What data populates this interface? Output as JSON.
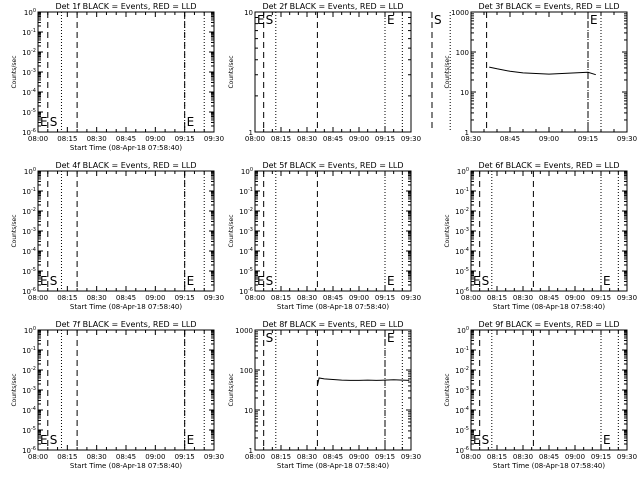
{
  "colors": {
    "events": "#000000",
    "lld": "#ff0000",
    "background": "#ffffff"
  },
  "chart_data": [
    {
      "type": "line",
      "title": "Det 1f BLACK = Events, RED = LLD",
      "xlabel": "Start Time (08-Apr-18 07:58:40)",
      "ylabel": "Counts/sec",
      "x_ticks": [
        "08:00",
        "08:15",
        "08:30",
        "08:45",
        "09:00",
        "09:15",
        "09:30"
      ],
      "y_ticks": [
        "10^0",
        "10^-1",
        "10^-2",
        "10^-3",
        "10^-4",
        "10^-5",
        "10^-6"
      ],
      "ylim": [
        1e-06,
        1
      ],
      "y_scale": "log",
      "markers": [
        {
          "text": "E",
          "at": "08:00"
        },
        {
          "text": "S",
          "at": "08:05"
        },
        {
          "text": "E",
          "at": "09:15"
        }
      ],
      "vlines_dashed": [
        "08:05",
        "08:20",
        "09:15"
      ],
      "vlines_dotted": [
        "08:12",
        "09:15",
        "09:25"
      ],
      "series": []
    },
    {
      "type": "line",
      "title": "Det 2f BLACK = Events, RED = LLD",
      "xlabel": "",
      "ylabel": "Counts/sec",
      "x_ticks": [
        "08:00",
        "08:15",
        "08:30",
        "08:45",
        "09:00",
        "09:15",
        "09:30"
      ],
      "y_ticks": [
        "1",
        "10"
      ],
      "ylim": [
        1,
        10
      ],
      "y_scale": "log",
      "markers": [
        {
          "text": "E",
          "at": "08:00"
        },
        {
          "text": "S",
          "at": "08:05"
        },
        {
          "text": "E",
          "at": "09:15"
        }
      ],
      "vlines_dashed": [
        "08:05",
        "08:36"
      ],
      "vlines_dotted": [
        "08:12",
        "09:15",
        "09:25"
      ],
      "series": []
    },
    {
      "type": "line",
      "title": "Det 3f BLACK = Events, RED = LLD",
      "xlabel": "",
      "ylabel": "Counts/sec",
      "x_ticks": [
        "08:30",
        "08:45",
        "09:00",
        "09:15",
        "09:30"
      ],
      "y_ticks": [
        "1",
        "10",
        "100",
        "1000"
      ],
      "ylim": [
        1,
        1000
      ],
      "y_scale": "log",
      "markers": [
        {
          "text": "S",
          "at": "08:15"
        },
        {
          "text": "E",
          "at": "09:15"
        }
      ],
      "vlines_dashed": [
        "08:15",
        "08:36",
        "09:15"
      ],
      "vlines_dotted": [
        "08:22",
        "09:15",
        "09:20"
      ],
      "series": [
        {
          "x": [
            "08:37",
            "08:40",
            "08:45",
            "08:50",
            "08:55",
            "09:00",
            "09:05",
            "09:10",
            "09:15",
            "09:18"
          ],
          "values": [
            42,
            38,
            33,
            30,
            29,
            28,
            29,
            30,
            31,
            27
          ]
        }
      ]
    },
    {
      "type": "line",
      "title": "Det 4f BLACK = Events, RED = LLD",
      "xlabel": "Start Time (08-Apr-18 07:58:40)",
      "ylabel": "Counts/sec",
      "x_ticks": [
        "08:00",
        "08:15",
        "08:30",
        "08:45",
        "09:00",
        "09:15",
        "09:30"
      ],
      "y_ticks": [
        "10^0",
        "10^-1",
        "10^-2",
        "10^-3",
        "10^-4",
        "10^-5",
        "10^-6"
      ],
      "ylim": [
        1e-06,
        1
      ],
      "y_scale": "log",
      "markers": [
        {
          "text": "E",
          "at": "08:00"
        },
        {
          "text": "S",
          "at": "08:05"
        },
        {
          "text": "E",
          "at": "09:15"
        }
      ],
      "vlines_dashed": [
        "08:05",
        "08:20",
        "09:15"
      ],
      "vlines_dotted": [
        "08:12",
        "09:15",
        "09:25"
      ],
      "series": []
    },
    {
      "type": "line",
      "title": "Det 5f BLACK = Events, RED = LLD",
      "xlabel": "Start Time (08-Apr-18 07:58:40)",
      "ylabel": "Counts/sec",
      "x_ticks": [
        "08:00",
        "08:15",
        "08:30",
        "08:45",
        "09:00",
        "09:15",
        "09:30"
      ],
      "y_ticks": [
        "10^0",
        "10^-1",
        "10^-2",
        "10^-3",
        "10^-4",
        "10^-5",
        "10^-6"
      ],
      "ylim": [
        1e-06,
        1
      ],
      "y_scale": "log",
      "markers": [
        {
          "text": "E",
          "at": "08:00"
        },
        {
          "text": "S",
          "at": "08:05"
        },
        {
          "text": "E",
          "at": "09:15"
        }
      ],
      "vlines_dashed": [
        "08:05",
        "08:36"
      ],
      "vlines_dotted": [
        "08:12",
        "09:15",
        "09:25"
      ],
      "series": []
    },
    {
      "type": "line",
      "title": "Det 6f BLACK = Events, RED = LLD",
      "xlabel": "Start Time (08-Apr-18 07:58:40)",
      "ylabel": "Counts/sec",
      "x_ticks": [
        "08:00",
        "08:15",
        "08:30",
        "08:45",
        "09:00",
        "09:15",
        "09:30"
      ],
      "y_ticks": [
        "10^0",
        "10^-1",
        "10^-2",
        "10^-3",
        "10^-4",
        "10^-5",
        "10^-6"
      ],
      "ylim": [
        1e-06,
        1
      ],
      "y_scale": "log",
      "markers": [
        {
          "text": "E",
          "at": "08:00"
        },
        {
          "text": "S",
          "at": "08:05"
        },
        {
          "text": "E",
          "at": "09:15"
        }
      ],
      "vlines_dashed": [
        "08:05",
        "08:36"
      ],
      "vlines_dotted": [
        "08:12",
        "09:15",
        "09:25"
      ],
      "series": []
    },
    {
      "type": "line",
      "title": "Det 7f BLACK = Events, RED = LLD",
      "xlabel": "Start Time (08-Apr-18 07:58:40)",
      "ylabel": "Counts/sec",
      "x_ticks": [
        "08:00",
        "08:15",
        "08:30",
        "08:45",
        "09:00",
        "09:15",
        "09:30"
      ],
      "y_ticks": [
        "10^0",
        "10^-1",
        "10^-2",
        "10^-3",
        "10^-4",
        "10^-5",
        "10^-6"
      ],
      "ylim": [
        1e-06,
        1
      ],
      "y_scale": "log",
      "markers": [
        {
          "text": "E",
          "at": "08:00"
        },
        {
          "text": "S",
          "at": "08:05"
        },
        {
          "text": "E",
          "at": "09:15"
        }
      ],
      "vlines_dashed": [
        "08:05",
        "08:20",
        "09:15"
      ],
      "vlines_dotted": [
        "08:12",
        "09:15",
        "09:25"
      ],
      "series": []
    },
    {
      "type": "line",
      "title": "Det 8f BLACK = Events, RED = LLD",
      "xlabel": "Start Time (08-Apr-18 07:58:40)",
      "ylabel": "Counts/sec",
      "x_ticks": [
        "08:00",
        "08:15",
        "08:30",
        "08:45",
        "09:00",
        "09:15",
        "09:30"
      ],
      "y_ticks": [
        "1",
        "10",
        "100",
        "1000"
      ],
      "ylim": [
        1,
        1000
      ],
      "y_scale": "log",
      "markers": [
        {
          "text": "S",
          "at": "08:05"
        },
        {
          "text": "E",
          "at": "09:15"
        }
      ],
      "vlines_dashed": [
        "08:05",
        "08:36",
        "09:15"
      ],
      "vlines_dotted": [
        "08:12",
        "09:15",
        "09:25"
      ],
      "series": [
        {
          "x": [
            "08:36",
            "08:37",
            "08:40",
            "08:45",
            "08:50",
            "08:55",
            "09:00",
            "09:05",
            "09:10",
            "09:15",
            "09:20",
            "09:25",
            "09:29"
          ],
          "values": [
            40,
            63,
            60,
            58,
            56,
            55,
            55,
            56,
            55,
            56,
            57,
            56,
            55
          ]
        }
      ]
    },
    {
      "type": "line",
      "title": "Det 9f BLACK = Events, RED = LLD",
      "xlabel": "Start Time (08-Apr-18 07:58:40)",
      "ylabel": "Counts/sec",
      "x_ticks": [
        "08:00",
        "08:15",
        "08:30",
        "08:45",
        "09:00",
        "09:15",
        "09:30"
      ],
      "y_ticks": [
        "10^0",
        "10^-1",
        "10^-2",
        "10^-3",
        "10^-4",
        "10^-5",
        "10^-6"
      ],
      "ylim": [
        1e-06,
        1
      ],
      "y_scale": "log",
      "markers": [
        {
          "text": "E",
          "at": "08:00"
        },
        {
          "text": "S",
          "at": "08:05"
        },
        {
          "text": "E",
          "at": "09:15"
        }
      ],
      "vlines_dashed": [
        "08:05",
        "08:36"
      ],
      "vlines_dotted": [
        "08:12",
        "09:15",
        "09:25"
      ],
      "series": []
    }
  ]
}
